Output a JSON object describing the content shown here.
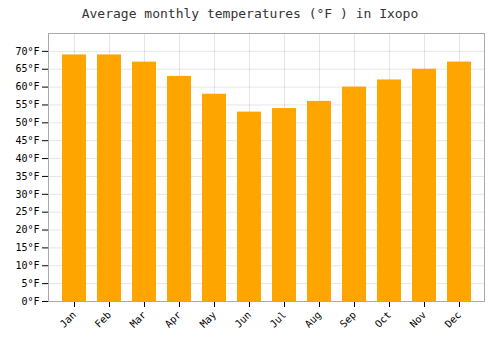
{
  "chart_data": {
    "type": "bar",
    "title": "Average monthly temperatures (°F ) in Ixopo",
    "categories": [
      "Jan",
      "Feb",
      "Mar",
      "Apr",
      "May",
      "Jun",
      "Jul",
      "Aug",
      "Sep",
      "Oct",
      "Nov",
      "Dec"
    ],
    "values": [
      69,
      69,
      67,
      63,
      58,
      53,
      54,
      56,
      60,
      62,
      65,
      67
    ],
    "color": "#FFA500",
    "ylim": [
      0,
      75
    ],
    "yticks": [
      {
        "value": 0,
        "label": "0°F"
      },
      {
        "value": 5,
        "label": "5°F"
      },
      {
        "value": 10,
        "label": "10°F"
      },
      {
        "value": 15,
        "label": "15°F"
      },
      {
        "value": 20,
        "label": "20°F"
      },
      {
        "value": 25,
        "label": "25°F"
      },
      {
        "value": 30,
        "label": "30°F"
      },
      {
        "value": 35,
        "label": "35°F"
      },
      {
        "value": 40,
        "label": "40°F"
      },
      {
        "value": 45,
        "label": "45°F"
      },
      {
        "value": 50,
        "label": "50°F"
      },
      {
        "value": 55,
        "label": "55°F"
      },
      {
        "value": 60,
        "label": "60°F"
      },
      {
        "value": 65,
        "label": "65°F"
      },
      {
        "value": 70,
        "label": "70°F"
      }
    ],
    "grid": true
  }
}
